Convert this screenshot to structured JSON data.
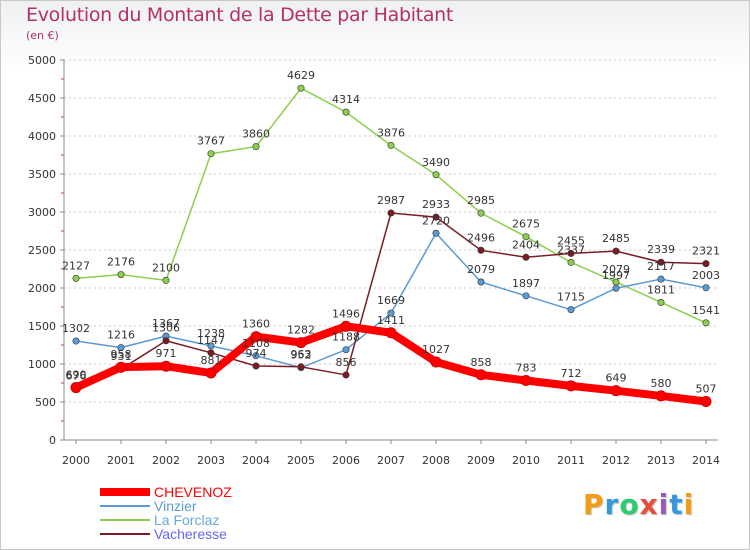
{
  "chart_data": {
    "type": "line",
    "title": "Evolution du Montant de la Dette par Habitant",
    "subtitle": "(en €)",
    "xlabel": "",
    "ylabel": "",
    "ylim": [
      0,
      5000
    ],
    "yticks": [
      "0",
      "500",
      "1000",
      "1500",
      "2000",
      "2500",
      "3000",
      "3500",
      "4000",
      "4500",
      "5000"
    ],
    "categories": [
      "2000",
      "2001",
      "2002",
      "2003",
      "2004",
      "2005",
      "2006",
      "2007",
      "2008",
      "2009",
      "2010",
      "2011",
      "2012",
      "2013",
      "2014"
    ],
    "legend_position": "bottom-left",
    "series": [
      {
        "name": "CHEVENOZ",
        "color": "#ff0000",
        "values": [
          690,
          958,
          971,
          881,
          1360,
          1282,
          1496,
          1411,
          1027,
          858,
          783,
          712,
          649,
          580,
          507
        ],
        "labels": [
          "690",
          "958",
          "971",
          "881",
          "1360",
          "1282",
          "1496",
          "1411",
          "1027",
          "858",
          "783",
          "712",
          "649",
          "580",
          "507"
        ]
      },
      {
        "name": "Vinzier",
        "color": "#5b9bd5",
        "values": [
          1302,
          1216,
          1367,
          1238,
          1108,
          952,
          1188,
          1669,
          2720,
          2079,
          1897,
          1715,
          1997,
          2117,
          2003
        ],
        "labels": [
          "1302",
          "1216",
          "1367",
          "1238",
          "1108",
          "952",
          "1188",
          "1669",
          "2720",
          "2079",
          "1897",
          "1715",
          "1997",
          "2117",
          "2003"
        ]
      },
      {
        "name": "La Forclaz",
        "color": "#8ccf4d",
        "values": [
          2127,
          2176,
          2100,
          3767,
          3860,
          4629,
          4314,
          3876,
          3490,
          2985,
          2675,
          2337,
          2079,
          1811,
          1541
        ],
        "labels": [
          "2127",
          "2176",
          "2100",
          "3767",
          "3860",
          "4629",
          "4314",
          "3876",
          "3490",
          "2985",
          "2675",
          "2337",
          "2079",
          "1811",
          "1541"
        ]
      },
      {
        "name": "Vacheresse",
        "color": "#7b1c24",
        "values": [
          676,
          931,
          1306,
          1147,
          974,
          963,
          856,
          2987,
          2933,
          2496,
          2404,
          2455,
          2485,
          2339,
          2321
        ],
        "labels": [
          "676",
          "931",
          "1306",
          "1147",
          "974",
          "963",
          "856",
          "2987",
          "2933",
          "2496",
          "2404",
          "2455",
          "2485",
          "2339",
          "2321"
        ]
      }
    ]
  },
  "logo": {
    "letters": [
      "P",
      "r",
      "o",
      "x",
      "i",
      "t",
      "i"
    ]
  }
}
